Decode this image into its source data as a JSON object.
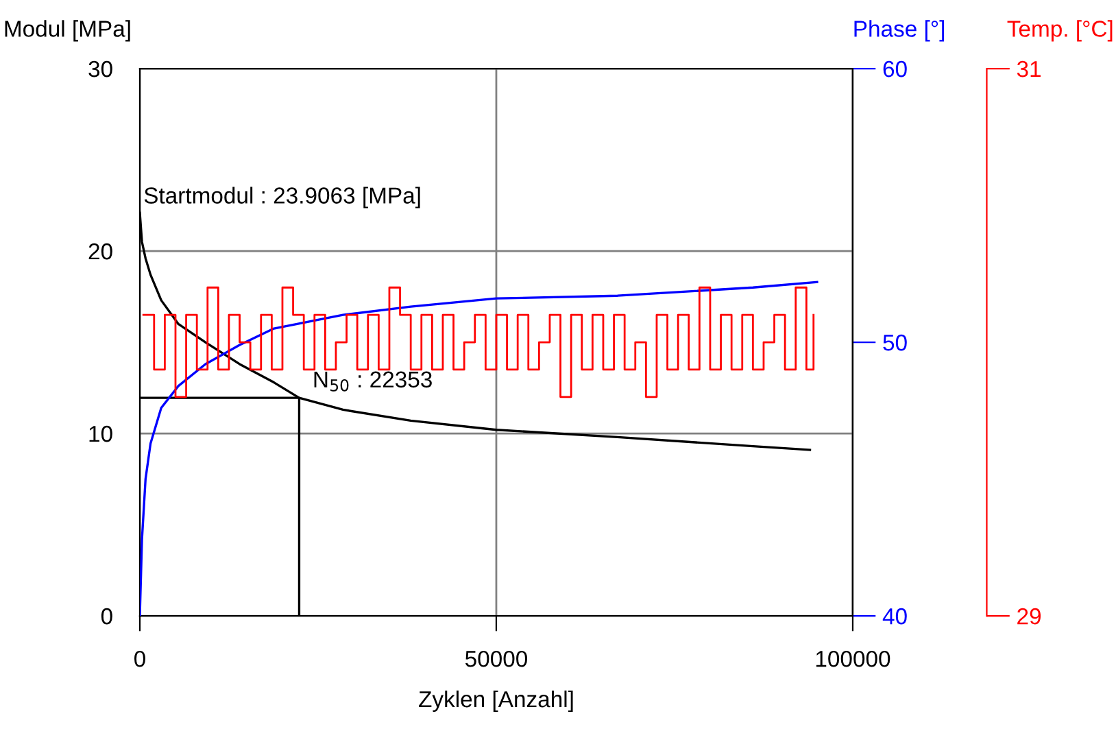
{
  "chart_data": {
    "type": "line",
    "xlabel": "Zyklen [Anzahl]",
    "ylabel": "Modul [MPa]",
    "y2label": "Phase [°]",
    "y3label": "Temp. [°C]",
    "xlim": [
      0,
      100000
    ],
    "xticks": [
      0,
      50000,
      100000
    ],
    "ylim": [
      0,
      30
    ],
    "yticks": [
      0,
      10,
      20,
      30
    ],
    "y2lim": [
      40,
      60
    ],
    "y2ticks": [
      40,
      50,
      60
    ],
    "y3lim": [
      29,
      31
    ],
    "y3ticks": [
      29,
      31
    ],
    "grid": true,
    "legend": false,
    "series": [
      {
        "type": "step",
        "axis": "y3",
        "color": "#ff0000",
        "x": [
          500,
          2000,
          3500,
          5000,
          6500,
          8000,
          9500,
          11000,
          12500,
          14000,
          15500,
          17000,
          18500,
          20000,
          21500,
          23000,
          24500,
          26000,
          27500,
          29000,
          30500,
          32000,
          33500,
          35000,
          36500,
          38000,
          39500,
          41000,
          42500,
          44000,
          45500,
          47000,
          48500,
          50000,
          51500,
          53000,
          54500,
          56000,
          57500,
          59000,
          60500,
          62000,
          63500,
          65000,
          66500,
          68000,
          69500,
          71000,
          72500,
          74000,
          75500,
          77000,
          78500,
          80000,
          81500,
          83000,
          84500,
          86000,
          87500,
          89000,
          90500,
          92000,
          93500,
          94500
        ],
        "values": [
          30.1,
          29.9,
          30.1,
          29.8,
          30.1,
          29.9,
          30.2,
          29.9,
          30.1,
          30.0,
          29.9,
          30.1,
          29.9,
          30.2,
          30.1,
          29.9,
          30.1,
          29.9,
          30.0,
          30.1,
          29.9,
          30.1,
          29.9,
          30.2,
          30.1,
          29.9,
          30.1,
          29.9,
          30.1,
          29.9,
          30.0,
          30.1,
          29.9,
          30.1,
          29.9,
          30.1,
          29.9,
          30.0,
          30.1,
          29.8,
          30.1,
          29.9,
          30.1,
          29.9,
          30.1,
          29.9,
          30.0,
          29.8,
          30.1,
          29.9,
          30.1,
          29.9,
          30.2,
          29.9,
          30.1,
          29.9,
          30.1,
          29.9,
          30.0,
          30.1,
          29.9,
          30.2,
          29.9,
          30.1
        ]
      },
      {
        "axis": "y2",
        "color": "#0000ff",
        "x": [
          0,
          300,
          800,
          1500,
          3000,
          5400,
          9200,
          14000,
          18800,
          28500,
          38000,
          50000,
          67000,
          86000,
          95000
        ],
        "values": [
          40,
          42.8,
          45,
          46.3,
          47.6,
          48.4,
          49.2,
          49.9,
          50.5,
          51.0,
          51.3,
          51.6,
          51.7,
          52.0,
          52.2
        ]
      },
      {
        "color": "#000000",
        "x": [
          0,
          300,
          800,
          1500,
          3000,
          5400,
          9200,
          14000,
          18800,
          22353,
          28500,
          38000,
          50000,
          67000,
          86000,
          94000
        ],
        "values": [
          22.1,
          20.5,
          19.6,
          18.7,
          17.3,
          16.0,
          15.0,
          13.8,
          12.8,
          11.95,
          11.3,
          10.7,
          10.2,
          9.8,
          9.3,
          9.1
        ]
      },
      {
        "color": "#000000",
        "x": [
          0,
          22353,
          22353
        ],
        "values": [
          11.95,
          11.95,
          0
        ]
      }
    ],
    "annotations": [
      "Startmodul : 23.9063 [MPa]",
      {
        "text": "N$_{50}$ : 22353",
        "x": 22353,
        "y": 11.95
      }
    ]
  }
}
